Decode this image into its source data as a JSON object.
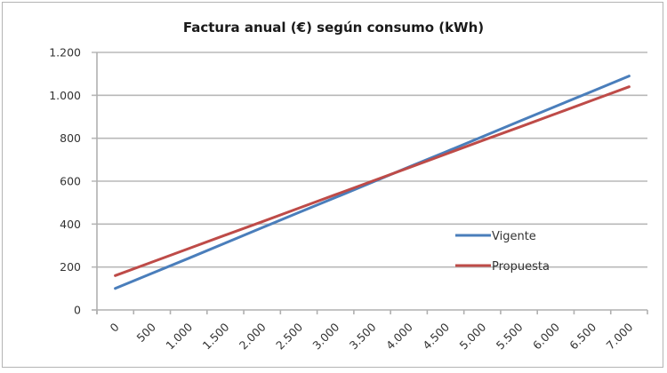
{
  "chart_data": {
    "type": "line",
    "title": "Factura anual (€) según consumo (kWh)",
    "xlabel": "",
    "ylabel": "",
    "categories": [
      "0",
      "500",
      "1.000",
      "1.500",
      "2.000",
      "2.500",
      "3.000",
      "3.500",
      "4.000",
      "4.500",
      "5.000",
      "5.500",
      "6.000",
      "6.500",
      "7.000"
    ],
    "x": [
      0,
      500,
      1000,
      1500,
      2000,
      2500,
      3000,
      3500,
      4000,
      4500,
      5000,
      5500,
      6000,
      6500,
      7000
    ],
    "ylim": [
      0,
      1200
    ],
    "yticks": [
      0,
      200,
      400,
      600,
      800,
      1000,
      1200
    ],
    "ytick_labels": [
      "0",
      "200",
      "400",
      "600",
      "800",
      "1.000",
      "1.200"
    ],
    "grid": true,
    "legend_position": "right",
    "series": [
      {
        "name": "Vigente",
        "color": "#4a7ebb",
        "values": [
          100,
          171,
          241,
          312,
          383,
          454,
          524,
          595,
          666,
          736,
          807,
          878,
          949,
          1019,
          1090
        ]
      },
      {
        "name": "Propuesta",
        "color": "#be4b48",
        "values": [
          160,
          223,
          286,
          349,
          411,
          474,
          537,
          600,
          663,
          726,
          789,
          851,
          914,
          977,
          1040
        ]
      }
    ]
  }
}
